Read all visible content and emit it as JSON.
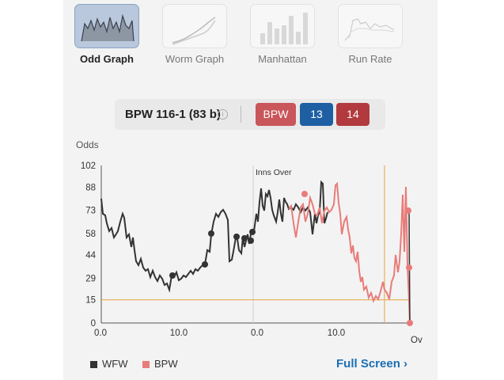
{
  "tabs": [
    {
      "label": "Odd Graph",
      "active": true,
      "icon": "odd-graph-icon"
    },
    {
      "label": "Worm Graph",
      "active": false,
      "icon": "worm-graph-icon"
    },
    {
      "label": "Manhattan",
      "active": false,
      "icon": "manhattan-icon"
    },
    {
      "label": "Run Rate",
      "active": false,
      "icon": "run-rate-icon"
    }
  ],
  "score": {
    "text": "BPW 116-1 (83 b)",
    "info_icon": "info-icon",
    "team": "BPW",
    "val1": "13",
    "val2": "14",
    "colors": {
      "team": "#c9565a",
      "val1": "#1e5fa3",
      "val2": "#b23a3e"
    }
  },
  "chart_data": {
    "type": "line",
    "ylabel": "Odds",
    "yticks": [
      "102",
      "88",
      "73",
      "58",
      "44",
      "29",
      "15",
      "0"
    ],
    "xticks": [
      "0.0",
      "10.0",
      "0.0",
      "10.0"
    ],
    "x_end_label": "Ov",
    "annotation": "Inns Over",
    "ylim": [
      0,
      102
    ],
    "reference_line": 15,
    "series": [
      {
        "name": "WFW",
        "color": "#333333"
      },
      {
        "name": "BPW",
        "color": "#e87c7a"
      }
    ]
  },
  "footer": {
    "legend": [
      "WFW",
      "BPW"
    ],
    "full_screen": "Full Screen ›"
  }
}
